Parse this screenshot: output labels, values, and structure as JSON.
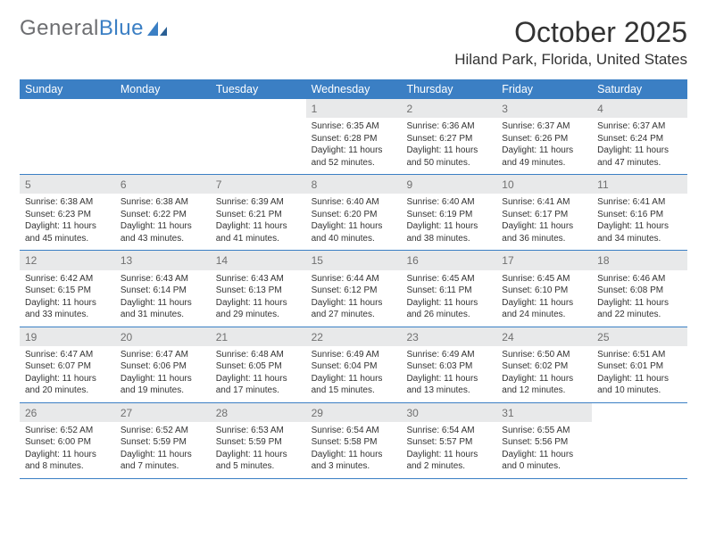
{
  "brand": {
    "part1": "General",
    "part2": "Blue"
  },
  "header": {
    "month_title": "October 2025",
    "location": "Hiland Park, Florida, United States"
  },
  "colors": {
    "header_bg": "#3b7fc4",
    "daynum_bg": "#e8e9ea",
    "text": "#333333",
    "brand_gray": "#6d6e71",
    "brand_blue": "#3b7fc4"
  },
  "weekdays": [
    "Sunday",
    "Monday",
    "Tuesday",
    "Wednesday",
    "Thursday",
    "Friday",
    "Saturday"
  ],
  "weeks": [
    [
      {
        "empty": true
      },
      {
        "empty": true
      },
      {
        "empty": true
      },
      {
        "num": "1",
        "sunrise": "Sunrise: 6:35 AM",
        "sunset": "Sunset: 6:28 PM",
        "day1": "Daylight: 11 hours",
        "day2": "and 52 minutes."
      },
      {
        "num": "2",
        "sunrise": "Sunrise: 6:36 AM",
        "sunset": "Sunset: 6:27 PM",
        "day1": "Daylight: 11 hours",
        "day2": "and 50 minutes."
      },
      {
        "num": "3",
        "sunrise": "Sunrise: 6:37 AM",
        "sunset": "Sunset: 6:26 PM",
        "day1": "Daylight: 11 hours",
        "day2": "and 49 minutes."
      },
      {
        "num": "4",
        "sunrise": "Sunrise: 6:37 AM",
        "sunset": "Sunset: 6:24 PM",
        "day1": "Daylight: 11 hours",
        "day2": "and 47 minutes."
      }
    ],
    [
      {
        "num": "5",
        "sunrise": "Sunrise: 6:38 AM",
        "sunset": "Sunset: 6:23 PM",
        "day1": "Daylight: 11 hours",
        "day2": "and 45 minutes."
      },
      {
        "num": "6",
        "sunrise": "Sunrise: 6:38 AM",
        "sunset": "Sunset: 6:22 PM",
        "day1": "Daylight: 11 hours",
        "day2": "and 43 minutes."
      },
      {
        "num": "7",
        "sunrise": "Sunrise: 6:39 AM",
        "sunset": "Sunset: 6:21 PM",
        "day1": "Daylight: 11 hours",
        "day2": "and 41 minutes."
      },
      {
        "num": "8",
        "sunrise": "Sunrise: 6:40 AM",
        "sunset": "Sunset: 6:20 PM",
        "day1": "Daylight: 11 hours",
        "day2": "and 40 minutes."
      },
      {
        "num": "9",
        "sunrise": "Sunrise: 6:40 AM",
        "sunset": "Sunset: 6:19 PM",
        "day1": "Daylight: 11 hours",
        "day2": "and 38 minutes."
      },
      {
        "num": "10",
        "sunrise": "Sunrise: 6:41 AM",
        "sunset": "Sunset: 6:17 PM",
        "day1": "Daylight: 11 hours",
        "day2": "and 36 minutes."
      },
      {
        "num": "11",
        "sunrise": "Sunrise: 6:41 AM",
        "sunset": "Sunset: 6:16 PM",
        "day1": "Daylight: 11 hours",
        "day2": "and 34 minutes."
      }
    ],
    [
      {
        "num": "12",
        "sunrise": "Sunrise: 6:42 AM",
        "sunset": "Sunset: 6:15 PM",
        "day1": "Daylight: 11 hours",
        "day2": "and 33 minutes."
      },
      {
        "num": "13",
        "sunrise": "Sunrise: 6:43 AM",
        "sunset": "Sunset: 6:14 PM",
        "day1": "Daylight: 11 hours",
        "day2": "and 31 minutes."
      },
      {
        "num": "14",
        "sunrise": "Sunrise: 6:43 AM",
        "sunset": "Sunset: 6:13 PM",
        "day1": "Daylight: 11 hours",
        "day2": "and 29 minutes."
      },
      {
        "num": "15",
        "sunrise": "Sunrise: 6:44 AM",
        "sunset": "Sunset: 6:12 PM",
        "day1": "Daylight: 11 hours",
        "day2": "and 27 minutes."
      },
      {
        "num": "16",
        "sunrise": "Sunrise: 6:45 AM",
        "sunset": "Sunset: 6:11 PM",
        "day1": "Daylight: 11 hours",
        "day2": "and 26 minutes."
      },
      {
        "num": "17",
        "sunrise": "Sunrise: 6:45 AM",
        "sunset": "Sunset: 6:10 PM",
        "day1": "Daylight: 11 hours",
        "day2": "and 24 minutes."
      },
      {
        "num": "18",
        "sunrise": "Sunrise: 6:46 AM",
        "sunset": "Sunset: 6:08 PM",
        "day1": "Daylight: 11 hours",
        "day2": "and 22 minutes."
      }
    ],
    [
      {
        "num": "19",
        "sunrise": "Sunrise: 6:47 AM",
        "sunset": "Sunset: 6:07 PM",
        "day1": "Daylight: 11 hours",
        "day2": "and 20 minutes."
      },
      {
        "num": "20",
        "sunrise": "Sunrise: 6:47 AM",
        "sunset": "Sunset: 6:06 PM",
        "day1": "Daylight: 11 hours",
        "day2": "and 19 minutes."
      },
      {
        "num": "21",
        "sunrise": "Sunrise: 6:48 AM",
        "sunset": "Sunset: 6:05 PM",
        "day1": "Daylight: 11 hours",
        "day2": "and 17 minutes."
      },
      {
        "num": "22",
        "sunrise": "Sunrise: 6:49 AM",
        "sunset": "Sunset: 6:04 PM",
        "day1": "Daylight: 11 hours",
        "day2": "and 15 minutes."
      },
      {
        "num": "23",
        "sunrise": "Sunrise: 6:49 AM",
        "sunset": "Sunset: 6:03 PM",
        "day1": "Daylight: 11 hours",
        "day2": "and 13 minutes."
      },
      {
        "num": "24",
        "sunrise": "Sunrise: 6:50 AM",
        "sunset": "Sunset: 6:02 PM",
        "day1": "Daylight: 11 hours",
        "day2": "and 12 minutes."
      },
      {
        "num": "25",
        "sunrise": "Sunrise: 6:51 AM",
        "sunset": "Sunset: 6:01 PM",
        "day1": "Daylight: 11 hours",
        "day2": "and 10 minutes."
      }
    ],
    [
      {
        "num": "26",
        "sunrise": "Sunrise: 6:52 AM",
        "sunset": "Sunset: 6:00 PM",
        "day1": "Daylight: 11 hours",
        "day2": "and 8 minutes."
      },
      {
        "num": "27",
        "sunrise": "Sunrise: 6:52 AM",
        "sunset": "Sunset: 5:59 PM",
        "day1": "Daylight: 11 hours",
        "day2": "and 7 minutes."
      },
      {
        "num": "28",
        "sunrise": "Sunrise: 6:53 AM",
        "sunset": "Sunset: 5:59 PM",
        "day1": "Daylight: 11 hours",
        "day2": "and 5 minutes."
      },
      {
        "num": "29",
        "sunrise": "Sunrise: 6:54 AM",
        "sunset": "Sunset: 5:58 PM",
        "day1": "Daylight: 11 hours",
        "day2": "and 3 minutes."
      },
      {
        "num": "30",
        "sunrise": "Sunrise: 6:54 AM",
        "sunset": "Sunset: 5:57 PM",
        "day1": "Daylight: 11 hours",
        "day2": "and 2 minutes."
      },
      {
        "num": "31",
        "sunrise": "Sunrise: 6:55 AM",
        "sunset": "Sunset: 5:56 PM",
        "day1": "Daylight: 11 hours",
        "day2": "and 0 minutes."
      },
      {
        "empty": true
      }
    ]
  ]
}
